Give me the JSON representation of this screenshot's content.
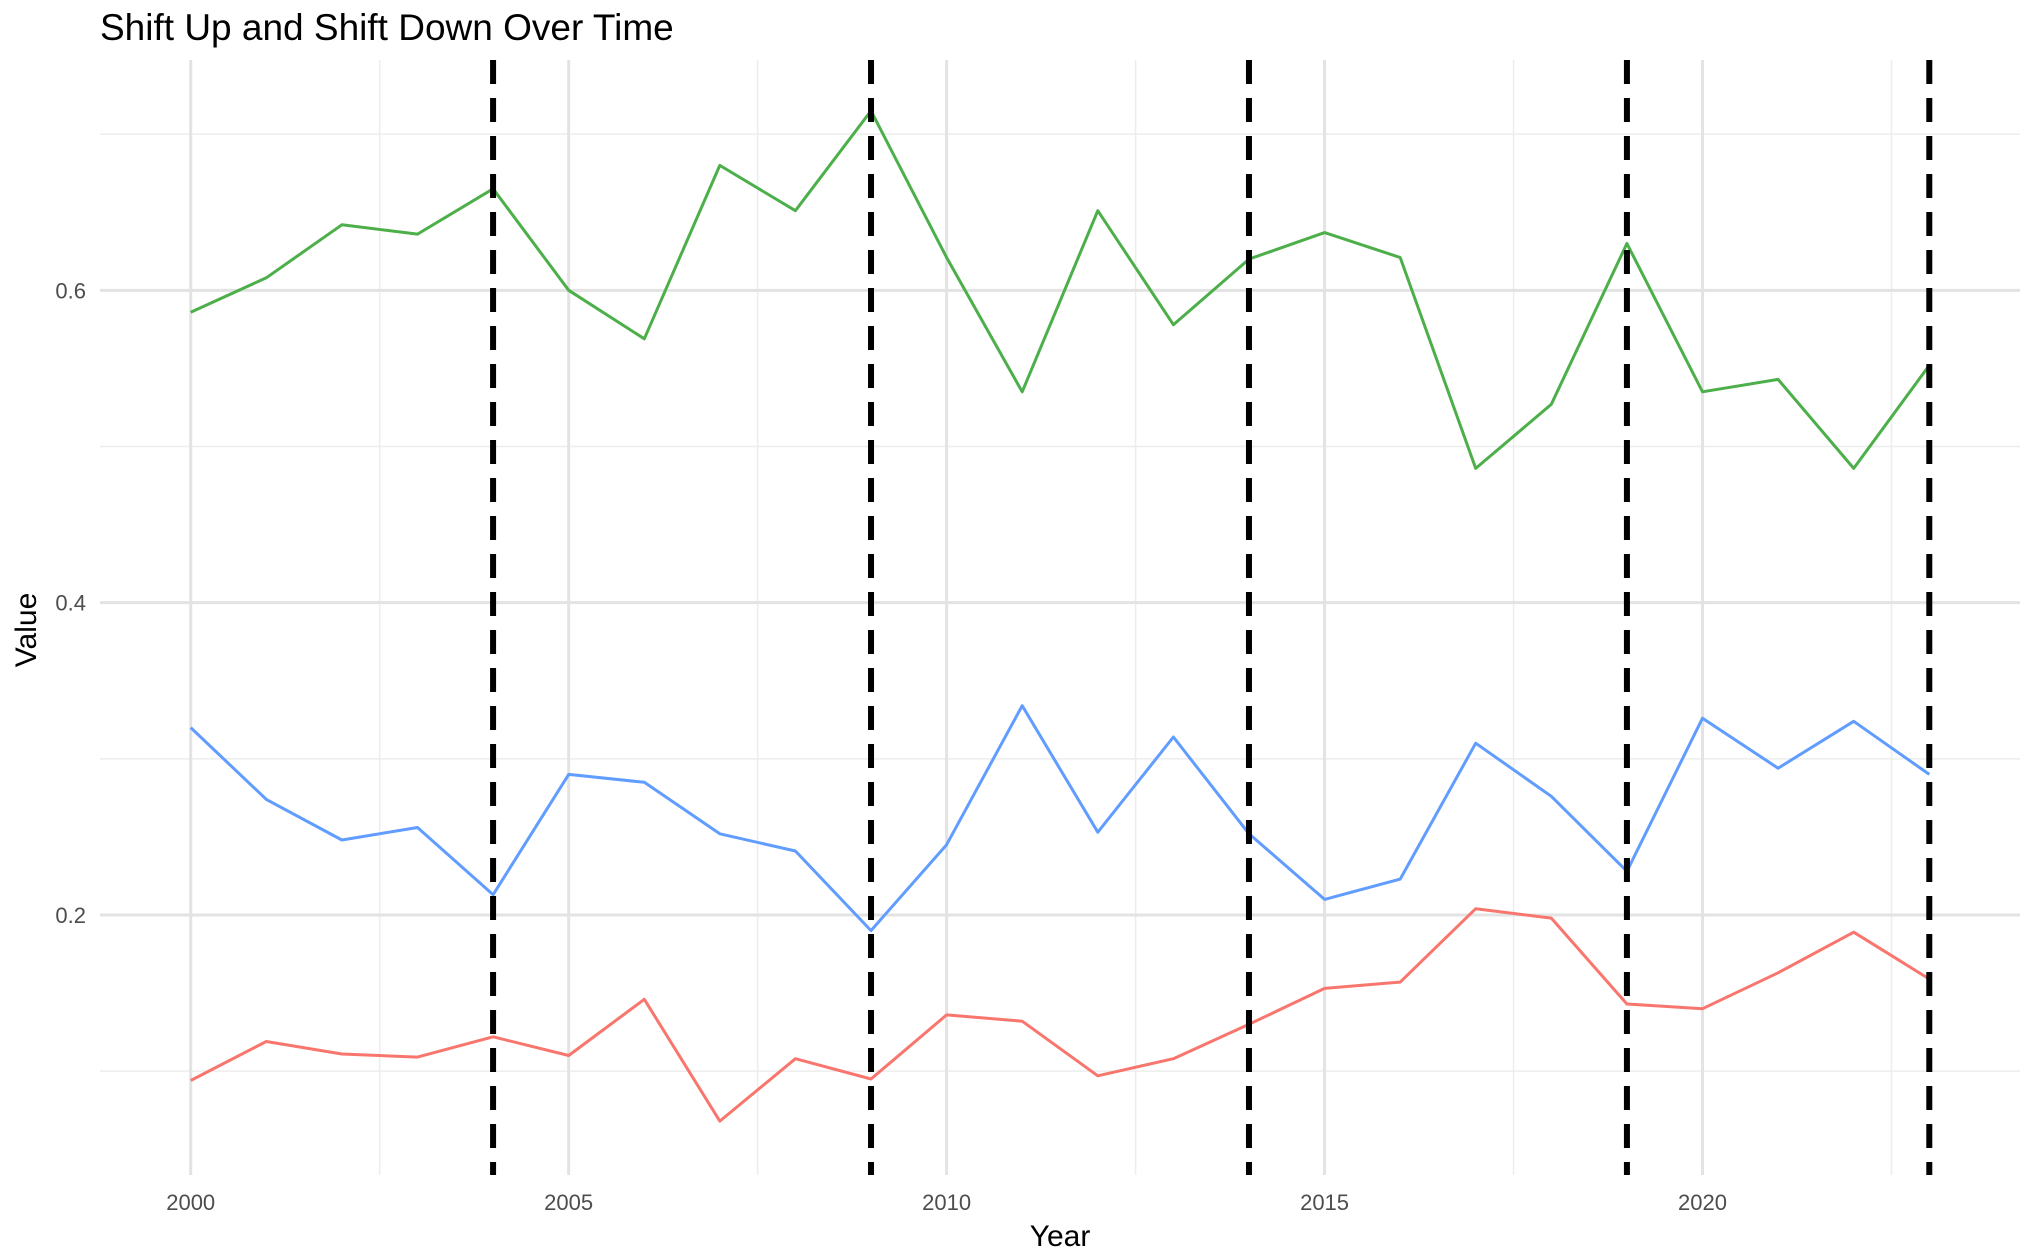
{
  "chart_data": {
    "type": "line",
    "title": "Shift Up and Shift Down Over Time",
    "xlabel": "Year",
    "ylabel": "Value",
    "xlim": [
      1998.8,
      2024.2
    ],
    "ylim": [
      0.0335,
      0.7475
    ],
    "x_ticks": [
      2000,
      2005,
      2010,
      2015,
      2020
    ],
    "x_tick_labels": [
      "2000",
      "2005",
      "2010",
      "2015",
      "2020"
    ],
    "y_ticks": [
      0.2,
      0.4,
      0.6
    ],
    "y_tick_labels": [
      "0.2",
      "0.4",
      "0.6"
    ],
    "y_minor_ticks": [
      0.1,
      0.3,
      0.5,
      0.7
    ],
    "x_minor_ticks": [
      2002.5,
      2007.5,
      2012.5,
      2017.5,
      2022.5
    ],
    "grid": true,
    "legend": "none",
    "x": [
      2000,
      2001,
      2002,
      2003,
      2004,
      2005,
      2006,
      2007,
      2008,
      2009,
      2010,
      2011,
      2012,
      2013,
      2014,
      2015,
      2016,
      2017,
      2018,
      2019,
      2020,
      2021,
      2022,
      2023
    ],
    "series": [
      {
        "color": "#4daf4a",
        "values": [
          0.586,
          0.608,
          0.642,
          0.636,
          0.665,
          0.6,
          0.569,
          0.68,
          0.651,
          0.715,
          0.621,
          0.535,
          0.651,
          0.578,
          0.62,
          0.637,
          0.621,
          0.486,
          0.527,
          0.63,
          0.535,
          0.543,
          0.486,
          0.552
        ]
      },
      {
        "color": "#619cff",
        "values": [
          0.32,
          0.274,
          0.248,
          0.256,
          0.213,
          0.29,
          0.285,
          0.252,
          0.241,
          0.19,
          0.245,
          0.334,
          0.253,
          0.314,
          0.252,
          0.21,
          0.223,
          0.31,
          0.276,
          0.228,
          0.326,
          0.294,
          0.324,
          0.29
        ]
      },
      {
        "color": "#f8766d",
        "values": [
          0.094,
          0.119,
          0.111,
          0.109,
          0.122,
          0.11,
          0.146,
          0.068,
          0.108,
          0.095,
          0.136,
          0.132,
          0.097,
          0.108,
          0.13,
          0.153,
          0.157,
          0.204,
          0.198,
          0.143,
          0.14,
          0.163,
          0.189,
          0.159
        ]
      }
    ],
    "vlines": {
      "x": [
        2004,
        2009,
        2014,
        2019,
        2023
      ],
      "color": "#000000",
      "style": "dashed"
    }
  }
}
